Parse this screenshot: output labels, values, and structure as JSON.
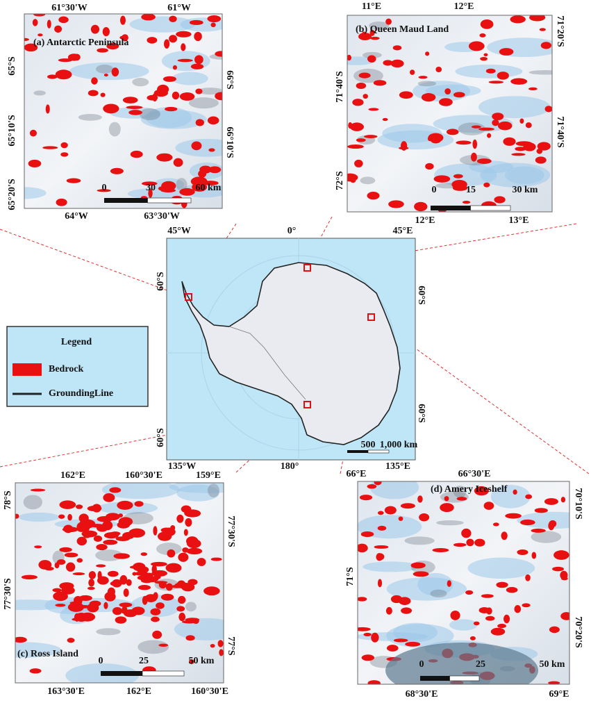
{
  "legend": {
    "title": "Legend",
    "items": [
      "Bedrock",
      "GroundingLine"
    ]
  },
  "overview": {
    "top": [
      "45°W",
      "0°",
      "45°E"
    ],
    "bottom": [
      "135°W",
      "180°",
      "135°E"
    ],
    "left": [
      "60°S",
      "60°S"
    ],
    "right": [
      "60°S",
      "60°S"
    ],
    "scale": [
      "500",
      "1,000 km"
    ]
  },
  "panels": [
    {
      "title": "(a) Antarctic Peninsula",
      "top": [
        "61°30'W",
        "61°W"
      ],
      "bottom": [
        "64°W",
        "63°30'W"
      ],
      "left": [
        "65°S",
        "65°10'S",
        "65°20'S"
      ],
      "right": [
        "66°S",
        "66°10'S"
      ],
      "scale": [
        "0",
        "30",
        "60 km"
      ]
    },
    {
      "title": "(b) Queen Maud Land",
      "top": [
        "11°E",
        "12°E"
      ],
      "bottom": [
        "12°E",
        "13°E"
      ],
      "left": [
        "71°40'S",
        "72°S"
      ],
      "right": [
        "71°20'S",
        "71°40'S"
      ],
      "scale": [
        "0",
        "15",
        "30 km"
      ]
    },
    {
      "title": "(c) Ross Island",
      "top": [
        "162°E",
        "160°30'E",
        "159°E"
      ],
      "bottom": [
        "163°30'E",
        "162°E",
        "160°30'E"
      ],
      "left": [
        "78°S",
        "77°30'S"
      ],
      "right": [
        "77°30'S",
        "77°S"
      ],
      "scale": [
        "0",
        "25",
        "50 km"
      ]
    },
    {
      "title": "(d) Amery Iceshelf",
      "top": [
        "66°E",
        "66°30'E"
      ],
      "bottom": [
        "68°30'E",
        "69°E"
      ],
      "left": [
        "71°S"
      ],
      "right": [
        "70°10'S",
        "70°20'S"
      ],
      "scale": [
        "0",
        "25",
        "50 km"
      ]
    }
  ]
}
